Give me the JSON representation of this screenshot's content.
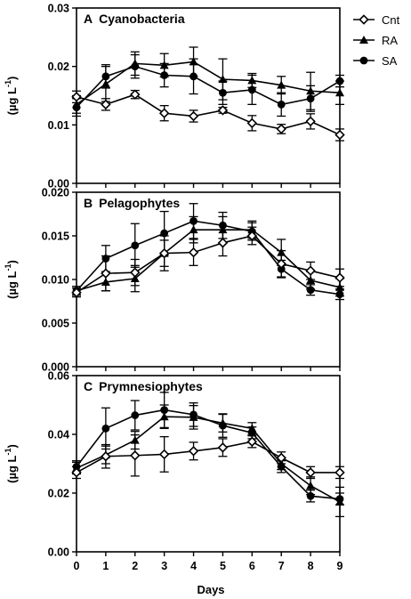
{
  "chart_data": {
    "type": "line",
    "xlabel": "Days",
    "x": [
      0,
      1,
      2,
      3,
      4,
      5,
      6,
      7,
      8,
      9
    ],
    "legend": {
      "position": "top-right",
      "entries": [
        {
          "name": "Cnt",
          "marker": "diamond-open"
        },
        {
          "name": "RA",
          "marker": "triangle-filled"
        },
        {
          "name": "SA",
          "marker": "circle-filled"
        }
      ]
    },
    "panels": [
      {
        "letter": "A",
        "name": "Cyanobacteria",
        "ylabel": "(µg L",
        "ylabel_sup": "-1",
        "ylabel_end": ")",
        "ylim": [
          0,
          0.03
        ],
        "yticks": [
          0,
          0.01,
          0.02,
          0.03
        ],
        "yticklabels": [
          "0.00",
          "0.01",
          "0.02",
          "0.03"
        ],
        "series": [
          {
            "name": "Cnt",
            "values": [
              0.0148,
              0.0135,
              0.0152,
              0.012,
              0.0115,
              0.0125,
              0.0103,
              0.0093,
              0.0106,
              0.0083
            ],
            "errors": [
              0.001,
              0.001,
              0.0007,
              0.0013,
              0.001,
              0.0005,
              0.0013,
              0.0008,
              0.0013,
              0.001
            ]
          },
          {
            "name": "RA",
            "values": [
              0.0135,
              0.017,
              0.0205,
              0.0202,
              0.0208,
              0.0178,
              0.0176,
              0.0168,
              0.0158,
              0.0155
            ],
            "errors": [
              0.0015,
              0.003,
              0.002,
              0.002,
              0.0025,
              0.0035,
              0.0012,
              0.0015,
              0.0032,
              0.002
            ]
          },
          {
            "name": "SA",
            "values": [
              0.013,
              0.0183,
              0.02,
              0.0185,
              0.0183,
              0.0155,
              0.016,
              0.0135,
              0.0145,
              0.0175
            ],
            "errors": [
              0.0015,
              0.002,
              0.002,
              0.002,
              0.003,
              0.002,
              0.0025,
              0.002,
              0.0022,
              0.001
            ]
          }
        ]
      },
      {
        "letter": "B",
        "name": "Pelagophytes",
        "ylabel": "(µg L",
        "ylabel_sup": "-1",
        "ylabel_end": ")",
        "ylim": [
          0,
          0.02
        ],
        "yticks": [
          0,
          0.005,
          0.01,
          0.015,
          0.02
        ],
        "yticklabels": [
          "0.000",
          "0.005",
          "0.010",
          "0.015",
          "0.020"
        ],
        "series": [
          {
            "name": "Cnt",
            "values": [
              0.0085,
              0.0107,
              0.0108,
              0.013,
              0.0131,
              0.0142,
              0.015,
              0.0118,
              0.011,
              0.0102
            ],
            "errors": [
              0.0005,
              0.002,
              0.0015,
              0.0015,
              0.0015,
              0.0015,
              0.001,
              0.0015,
              0.001,
              0.001
            ]
          },
          {
            "name": "RA",
            "values": [
              0.0087,
              0.0097,
              0.0101,
              0.013,
              0.0157,
              0.0157,
              0.0157,
              0.0131,
              0.0099,
              0.0091
            ],
            "errors": [
              0.0005,
              0.001,
              0.0015,
              0.002,
              0.0015,
              0.0015,
              0.001,
              0.0015,
              0.001,
              0.001
            ]
          },
          {
            "name": "SA",
            "values": [
              0.0087,
              0.0124,
              0.0139,
              0.0153,
              0.0167,
              0.0162,
              0.0155,
              0.0112,
              0.0088,
              0.0083
            ],
            "errors": [
              0.0005,
              0.0015,
              0.0025,
              0.0025,
              0.002,
              0.0015,
              0.001,
              0.001,
              0.0006,
              0.0006
            ]
          }
        ]
      },
      {
        "letter": "C",
        "name": "Prymnesiophytes",
        "ylabel": "(µg L",
        "ylabel_sup": "-1",
        "ylabel_end": ")",
        "ylim": [
          0,
          0.06
        ],
        "yticks": [
          0,
          0.02,
          0.04,
          0.06
        ],
        "yticklabels": [
          "0.00",
          "0.02",
          "0.04",
          "0.06"
        ],
        "series": [
          {
            "name": "Cnt",
            "values": [
              0.027,
              0.0325,
              0.0328,
              0.0332,
              0.0343,
              0.0355,
              0.0375,
              0.032,
              0.027,
              0.027
            ],
            "errors": [
              0.002,
              0.004,
              0.007,
              0.006,
              0.003,
              0.003,
              0.002,
              0.002,
              0.002,
              0.002
            ]
          },
          {
            "name": "RA",
            "values": [
              0.0285,
              0.033,
              0.038,
              0.046,
              0.0458,
              0.0438,
              0.042,
              0.03,
              0.0225,
              0.017
            ],
            "errors": [
              0.002,
              0.003,
              0.003,
              0.004,
              0.004,
              0.003,
              0.002,
              0.002,
              0.003,
              0.005
            ]
          },
          {
            "name": "SA",
            "values": [
              0.029,
              0.042,
              0.0465,
              0.0483,
              0.0467,
              0.043,
              0.0405,
              0.029,
              0.019,
              0.018
            ],
            "errors": [
              0.002,
              0.007,
              0.005,
              0.006,
              0.004,
              0.004,
              0.002,
              0.002,
              0.002,
              0.002
            ]
          }
        ]
      }
    ]
  }
}
